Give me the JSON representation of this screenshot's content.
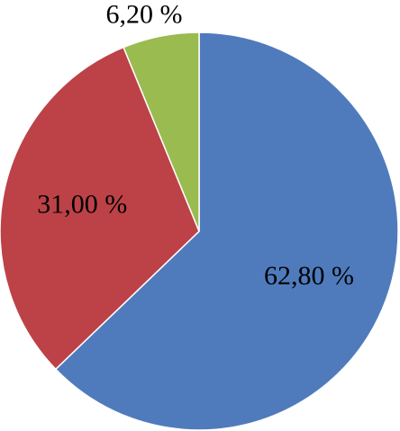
{
  "chart_data": {
    "type": "pie",
    "values": [
      62.8,
      31.0,
      6.2
    ],
    "value_labels": [
      "62,80 %",
      "31,00 %",
      "6,20 %"
    ],
    "colors": [
      "#4f7bbd",
      "#bc4247",
      "#9abb4f"
    ]
  }
}
